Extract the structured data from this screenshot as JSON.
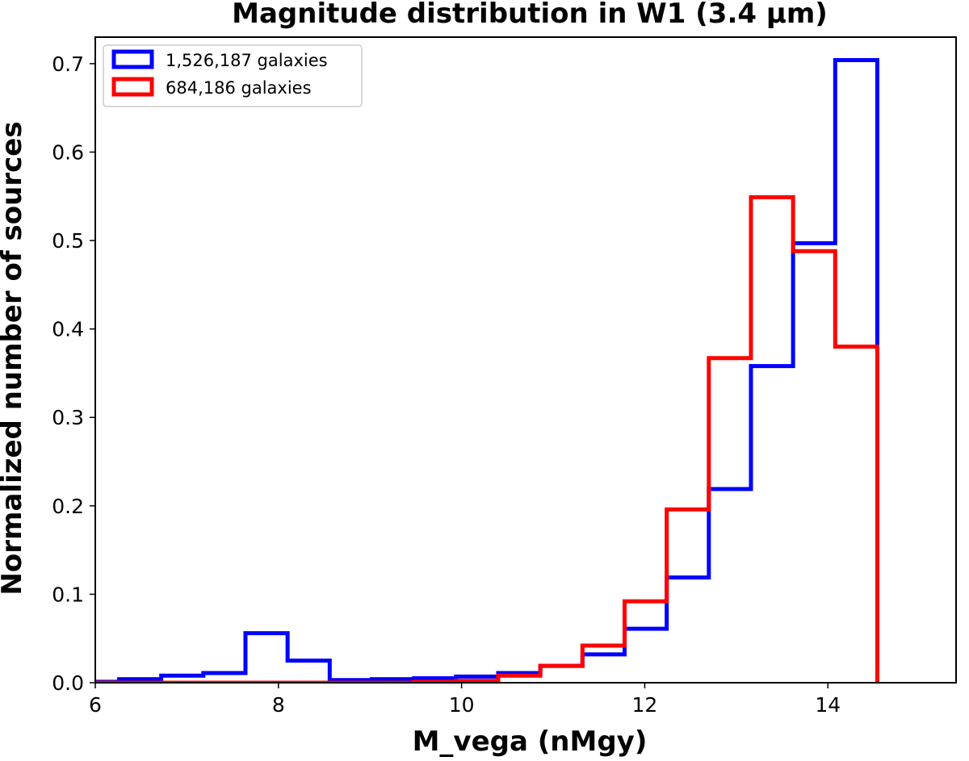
{
  "chart_data": {
    "type": "histogram",
    "title": "Magnitude distribution in W1 (3.4 µm)",
    "xlabel": "M_vega (nMgy)",
    "ylabel": "Normalized number of sources",
    "xlim": [
      6.0,
      15.4
    ],
    "ylim": [
      0.0,
      0.73
    ],
    "xticks": [
      6,
      8,
      10,
      12,
      14
    ],
    "xtick_labels": [
      "6",
      "8",
      "10",
      "12",
      "14"
    ],
    "yticks": [
      0.0,
      0.1,
      0.2,
      0.3,
      0.4,
      0.5,
      0.6,
      0.7
    ],
    "ytick_labels": [
      "0.0",
      "0.1",
      "0.2",
      "0.3",
      "0.4",
      "0.5",
      "0.6",
      "0.7"
    ],
    "grid": false,
    "legend_position": "top-left",
    "bin_edges": [
      5.8,
      6.26,
      6.72,
      7.18,
      7.64,
      8.1,
      8.56,
      9.02,
      9.48,
      9.94,
      10.4,
      10.86,
      11.32,
      11.78,
      12.24,
      12.7,
      13.16,
      13.62,
      14.08,
      14.54
    ],
    "series": [
      {
        "name": "1,526,187 galaxies",
        "color": "#0000ff",
        "values": [
          0.001,
          0.004,
          0.008,
          0.011,
          0.056,
          0.025,
          0.003,
          0.004,
          0.005,
          0.007,
          0.011,
          0.019,
          0.032,
          0.061,
          0.119,
          0.219,
          0.358,
          0.497,
          0.704
        ]
      },
      {
        "name": "684,186 galaxies",
        "color": "#ff0000",
        "values": [
          0.0,
          0.0,
          0.0,
          0.0,
          0.0,
          0.0,
          0.0,
          0.0,
          0.001,
          0.002,
          0.008,
          0.019,
          0.042,
          0.092,
          0.196,
          0.367,
          0.549,
          0.488,
          0.38
        ]
      }
    ]
  }
}
